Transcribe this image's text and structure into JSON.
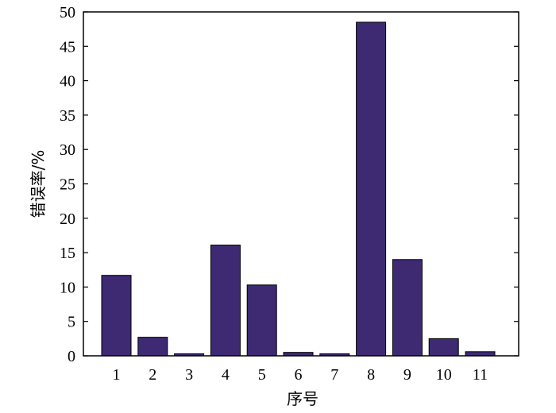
{
  "chart_data": {
    "type": "bar",
    "categories": [
      "1",
      "2",
      "3",
      "4",
      "5",
      "6",
      "7",
      "8",
      "9",
      "10",
      "11"
    ],
    "values": [
      11.7,
      2.7,
      0.3,
      16.1,
      10.3,
      0.5,
      0.3,
      48.5,
      14.0,
      2.5,
      0.6
    ],
    "title": "",
    "xlabel": "序号",
    "ylabel": "错误率/%",
    "ylim": [
      0,
      50
    ],
    "yticks": [
      0,
      5,
      10,
      15,
      20,
      25,
      30,
      35,
      40,
      45,
      50
    ],
    "grid": false,
    "colors": {
      "bar_fill": "#3d2a73",
      "bar_stroke": "#000000",
      "axis": "#000000"
    }
  }
}
